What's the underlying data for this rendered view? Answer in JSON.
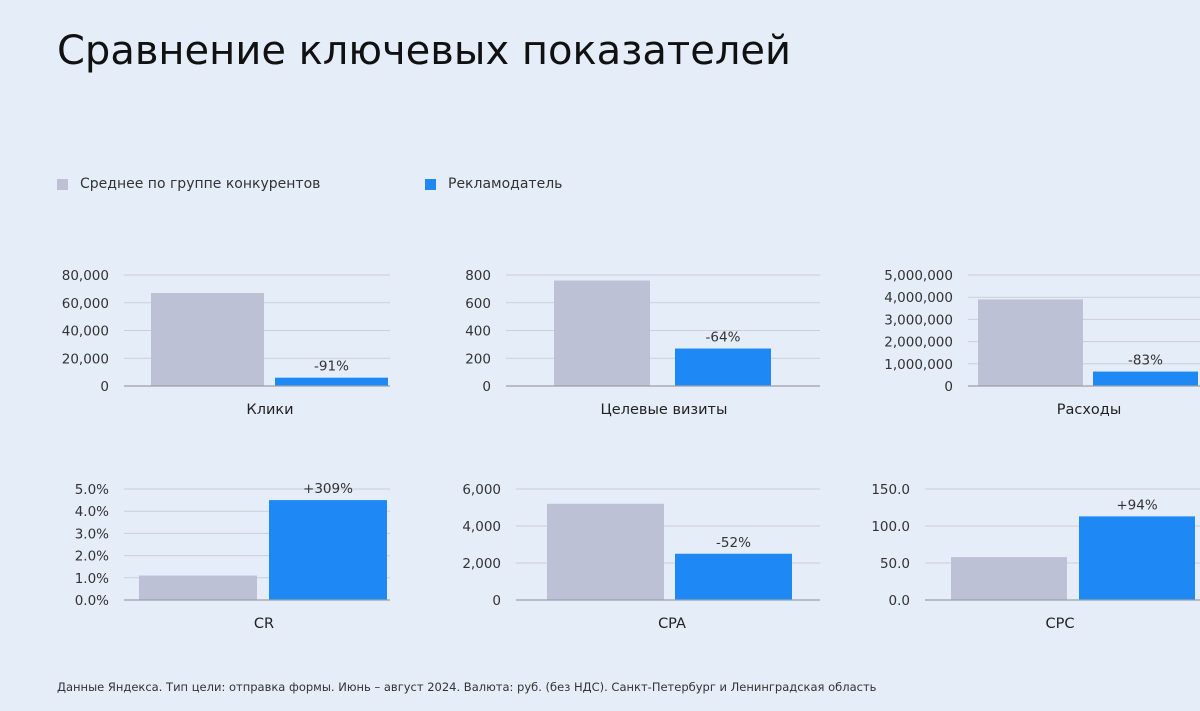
{
  "title": "Сравнение ключевых показателей",
  "legend": [
    {
      "label": "Среднее по группе конкурентов",
      "color": "#bcc1d6"
    },
    {
      "label": "Рекламодатель",
      "color": "#1e88f5"
    }
  ],
  "colors": {
    "competitors": "#bcc1d6",
    "advertiser": "#1e88f5",
    "grid": "#c9cfdb",
    "axis": "#9aa0aa"
  },
  "chart_data": [
    {
      "type": "bar",
      "category": "Клики",
      "ticks": [
        "80,000",
        "60,000",
        "40,000",
        "20,000",
        "0"
      ],
      "ylim": [
        0,
        80000
      ],
      "values": [
        67000,
        6000
      ],
      "change_label": "-91%"
    },
    {
      "type": "bar",
      "category": "Целевые визиты",
      "ticks": [
        "800",
        "600",
        "400",
        "200",
        "0"
      ],
      "ylim": [
        0,
        800
      ],
      "values": [
        760,
        270
      ],
      "change_label": "-64%"
    },
    {
      "type": "bar",
      "category": "Расходы",
      "ticks": [
        "5,000,000",
        "4,000,000",
        "3,000,000",
        "2,000,000",
        "1,000,000",
        "0"
      ],
      "ylim": [
        0,
        5000000
      ],
      "values": [
        3900000,
        650000
      ],
      "change_label": "-83%"
    },
    {
      "type": "bar",
      "category": "CR",
      "ticks": [
        "5.0%",
        "4.0%",
        "3.0%",
        "2.0%",
        "1.0%",
        "0.0%"
      ],
      "ylim": [
        0,
        5
      ],
      "values": [
        1.1,
        4.5
      ],
      "change_label": "+309%"
    },
    {
      "type": "bar",
      "category": "CPA",
      "ticks": [
        "6,000",
        "4,000",
        "2,000",
        "0"
      ],
      "ylim": [
        0,
        6000
      ],
      "values": [
        5200,
        2500
      ],
      "change_label": "-52%"
    },
    {
      "type": "bar",
      "category": "CPC",
      "ticks": [
        "150.0",
        "100.0",
        "50.0",
        "0.0"
      ],
      "ylim": [
        0,
        150
      ],
      "values": [
        58,
        113
      ],
      "change_label": "+94%"
    }
  ],
  "footnote": "Данные Яндекса. Тип цели: отправка формы. Июнь – август 2024. Валюта: руб. (без НДС). Санкт-Петербург и Ленинградская область"
}
